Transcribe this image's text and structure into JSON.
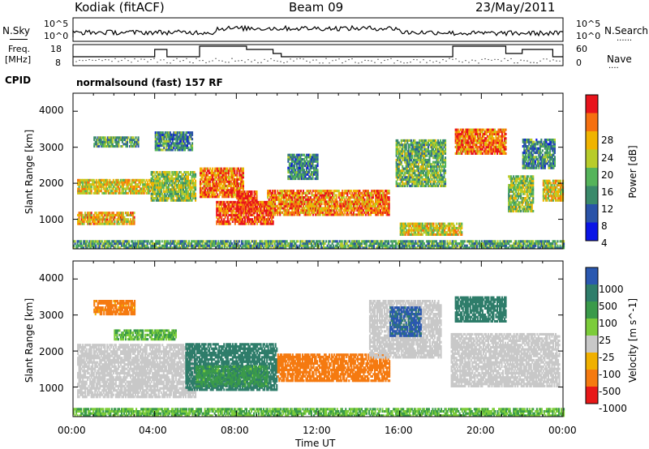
{
  "header": {
    "station": "Kodiak (fitACF)",
    "beam": "Beam 09",
    "date": "23/May/2011"
  },
  "sidebar": {
    "nsky_label": "N.Sky",
    "freq_label_1": "Freq.",
    "freq_label_2": "[MHz]",
    "cpid_label": "CPID",
    "nsearch_label": "N.Search",
    "nave_label": "Nave"
  },
  "noise_panel": {
    "ticks_left": [
      "10^5",
      "10^0"
    ],
    "ticks_right": [
      "10^5",
      "10^0"
    ]
  },
  "freq_panel": {
    "ticks_left": [
      "18",
      "8"
    ],
    "ticks_right": [
      "60",
      "0"
    ]
  },
  "cpid_text": "normalsound (fast) 157 RF",
  "chart_data": [
    {
      "type": "heatmap",
      "panel": "power",
      "ylabel": "Slant Range [km]",
      "yticks": [
        "4000",
        "3000",
        "2000",
        "1000"
      ],
      "colorbar_label": "Power [dB]",
      "colorbar_ticks": [
        "28",
        "24",
        "20",
        "16",
        "12",
        "8",
        "4"
      ],
      "colors": [
        "#0a14e6",
        "#2a53a8",
        "#3a8a6a",
        "#55b45a",
        "#b8cc2a",
        "#f0b400",
        "#f57010",
        "#e8141c"
      ],
      "value_range": [
        0,
        32
      ],
      "xlim": [
        "00:00",
        "24:00"
      ],
      "ylim": [
        180,
        4500
      ],
      "regions": [
        {
          "t": [
            0.2,
            4.0
          ],
          "r": [
            1700,
            2100
          ],
          "p": 20
        },
        {
          "t": [
            0.2,
            3.0
          ],
          "r": [
            850,
            1200
          ],
          "p": 22
        },
        {
          "t": [
            1.0,
            3.2
          ],
          "r": [
            3000,
            3300
          ],
          "p": 12
        },
        {
          "t": [
            3.8,
            6.0
          ],
          "r": [
            1500,
            2300
          ],
          "p": 16
        },
        {
          "t": [
            4.0,
            5.8
          ],
          "r": [
            2900,
            3400
          ],
          "p": 10
        },
        {
          "t": [
            6.2,
            8.3
          ],
          "r": [
            1600,
            2400
          ],
          "p": 26
        },
        {
          "t": [
            7.0,
            9.8
          ],
          "r": [
            850,
            1500
          ],
          "p": 28
        },
        {
          "t": [
            8.0,
            9.0
          ],
          "r": [
            1200,
            1800
          ],
          "p": 30
        },
        {
          "t": [
            9.5,
            15.5
          ],
          "r": [
            1100,
            1800
          ],
          "p": 25
        },
        {
          "t": [
            10.5,
            12.0
          ],
          "r": [
            2100,
            2800
          ],
          "p": 10
        },
        {
          "t": [
            15.8,
            18.2
          ],
          "r": [
            1900,
            3200
          ],
          "p": 14
        },
        {
          "t": [
            16.0,
            19.0
          ],
          "r": [
            550,
            900
          ],
          "p": 20
        },
        {
          "t": [
            18.7,
            21.2
          ],
          "r": [
            2800,
            3500
          ],
          "p": 26
        },
        {
          "t": [
            21.3,
            22.5
          ],
          "r": [
            1200,
            2200
          ],
          "p": 16
        },
        {
          "t": [
            22.0,
            23.6
          ],
          "r": [
            2400,
            3200
          ],
          "p": 10
        },
        {
          "t": [
            23.0,
            24.0
          ],
          "r": [
            1500,
            2100
          ],
          "p": 20
        },
        {
          "t": [
            0.0,
            24.0
          ],
          "r": [
            180,
            420
          ],
          "p": 12
        }
      ]
    },
    {
      "type": "heatmap",
      "panel": "velocity",
      "ylabel": "Slant Range [km]",
      "yticks": [
        "4000",
        "3000",
        "2000",
        "1000"
      ],
      "colorbar_label": "Velocity [m s^-1]",
      "colorbar_ticks": [
        "1000",
        "500",
        "100",
        "25",
        "-25",
        "-100",
        "-500",
        "-1000"
      ],
      "colors": [
        "#2a58b0",
        "#2e7d6a",
        "#3a9a4a",
        "#7ccc3a",
        "#c8c8c8",
        "#f0b000",
        "#f57a10",
        "#e81818"
      ],
      "xlim": [
        "00:00",
        "24:00"
      ],
      "ylim": [
        180,
        4500
      ],
      "regions": [
        {
          "t": [
            0.2,
            6.0
          ],
          "r": [
            700,
            2200
          ],
          "v": 0
        },
        {
          "t": [
            1.0,
            3.0
          ],
          "r": [
            3000,
            3400
          ],
          "v": -150
        },
        {
          "t": [
            2.0,
            5.0
          ],
          "r": [
            2300,
            2550
          ],
          "v": 50
        },
        {
          "t": [
            5.5,
            10.0
          ],
          "r": [
            900,
            2200
          ],
          "v": 200
        },
        {
          "t": [
            6.0,
            9.5
          ],
          "r": [
            1000,
            1600
          ],
          "v": 80
        },
        {
          "t": [
            10.0,
            15.5
          ],
          "r": [
            1150,
            1900
          ],
          "v": -200
        },
        {
          "t": [
            14.5,
            18.0
          ],
          "r": [
            1800,
            3400
          ],
          "v": 0
        },
        {
          "t": [
            15.5,
            17.0
          ],
          "r": [
            2400,
            3200
          ],
          "v": 600
        },
        {
          "t": [
            18.7,
            21.2
          ],
          "r": [
            2800,
            3500
          ],
          "v": 300
        },
        {
          "t": [
            18.5,
            23.8
          ],
          "r": [
            1000,
            2500
          ],
          "v": 0
        },
        {
          "t": [
            0.0,
            24.0
          ],
          "r": [
            180,
            400
          ],
          "v": 50
        }
      ]
    }
  ],
  "xaxis": {
    "label": "Time UT",
    "ticks": [
      "00:00",
      "04:00",
      "08:00",
      "12:00",
      "16:00",
      "20:00",
      "00:00"
    ]
  }
}
